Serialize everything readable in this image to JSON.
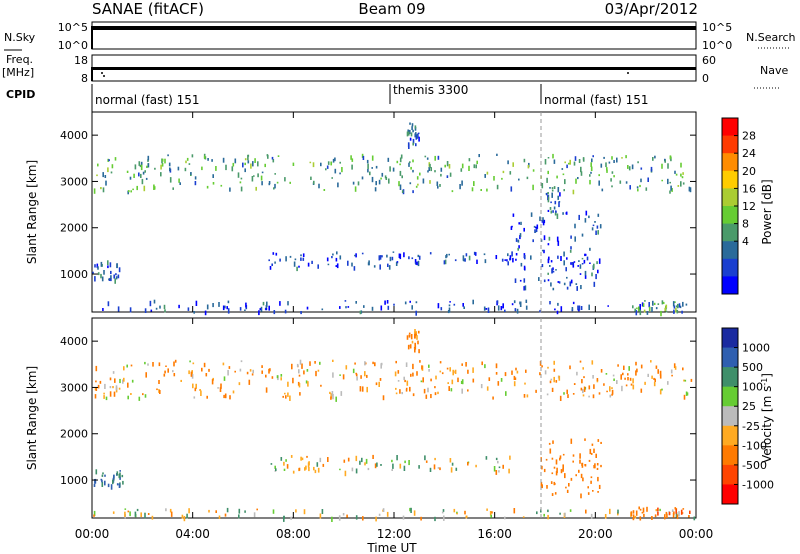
{
  "header": {
    "title_left": "SANAE (fitACF)",
    "title_center": "Beam 09",
    "title_right": "03/Apr/2012"
  },
  "top_panels": {
    "nsky_label": "N.Sky",
    "nsky_ticks": [
      "10^5",
      "10^0"
    ],
    "nsearch_label": "N.Search",
    "nsearch_ticks": [
      "10^5",
      "10^0"
    ],
    "freq_label_1": "Freq.",
    "freq_label_2": "[MHz]",
    "freq_ticks": [
      "18",
      "8"
    ],
    "nave_label": "Nave",
    "nave_ticks": [
      "60",
      "0"
    ],
    "cpid_label": "CPID",
    "cpid_segments": [
      {
        "label": "normal (fast) 151",
        "start_hour": 0,
        "end_hour": 12
      },
      {
        "label": "themis 3300",
        "start_hour": 12,
        "end_hour": 18
      },
      {
        "label": "normal (fast) 151",
        "start_hour": 18,
        "end_hour": 24
      }
    ]
  },
  "x_axis": {
    "label": "Time UT",
    "ticks": [
      "00:00",
      "04:00",
      "08:00",
      "12:00",
      "16:00",
      "20:00",
      "00:00"
    ]
  },
  "power_colorbar": {
    "label": "Power [dB]",
    "ticks": [
      "28",
      "24",
      "20",
      "16",
      "12",
      "8",
      "4"
    ],
    "colors": [
      "#ff0000",
      "#ff3a00",
      "#ff8c00",
      "#ffcc00",
      "#aacc33",
      "#66cc33",
      "#4a9a6a",
      "#2a6a9a",
      "#1a3fd0",
      "#0000ff"
    ]
  },
  "velocity_colorbar": {
    "label": "Velocity [m s^-1]",
    "ticks": [
      "1000",
      "500",
      "100",
      "25",
      "-25",
      "-100",
      "-500",
      "-1000"
    ],
    "colors": [
      "#1a2aa0",
      "#2f5fb0",
      "#3f8f6a",
      "#66cc33",
      "#bbbbbb",
      "#ffaa22",
      "#ff7a00",
      "#ff4400",
      "#ff0000"
    ]
  },
  "chart_data": [
    {
      "type": "heatmap",
      "panel": "power",
      "ylabel": "Slant Range [km]",
      "xlabel": "Time UT",
      "xlim": [
        0,
        24
      ],
      "ylim": [
        180,
        4500
      ],
      "yticks": [
        1000,
        2000,
        3000,
        4000
      ],
      "colorbar_label": "Power [dB]",
      "echo_regions": [
        {
          "t": [
            0,
            24
          ],
          "range": [
            200,
            450
          ],
          "value_db": 6
        },
        {
          "t": [
            0,
            1.2
          ],
          "range": [
            900,
            1300
          ],
          "value_db": 8
        },
        {
          "t": [
            7,
            12
          ],
          "range": [
            1150,
            1500
          ],
          "value_db": 6
        },
        {
          "t": [
            12,
            16.8
          ],
          "range": [
            1250,
            1500
          ],
          "value_db": 6
        },
        {
          "t": [
            12.5,
            13.0
          ],
          "range": [
            3800,
            4300
          ],
          "value_db": 8
        },
        {
          "t": [
            16.5,
            20.2
          ],
          "range": [
            700,
            2400
          ],
          "value_db": 6
        },
        {
          "t": [
            18,
            18.6
          ],
          "range": [
            2300,
            2900
          ],
          "value_db": 8
        },
        {
          "t": [
            21.4,
            23.3
          ],
          "range": [
            200,
            450
          ],
          "value_db": 14
        },
        {
          "t": [
            0,
            24
          ],
          "range": [
            2800,
            3600
          ],
          "value_db": 12
        }
      ]
    },
    {
      "type": "heatmap",
      "panel": "velocity",
      "ylabel": "Slant Range [km]",
      "xlabel": "Time UT",
      "xlim": [
        0,
        24
      ],
      "ylim": [
        180,
        4500
      ],
      "yticks": [
        1000,
        2000,
        3000,
        4000
      ],
      "colorbar_label": "Velocity [m s^-1]",
      "echo_regions": [
        {
          "t": [
            0,
            24
          ],
          "range": [
            200,
            400
          ],
          "value_ms": 0
        },
        {
          "t": [
            0,
            1.2
          ],
          "range": [
            900,
            1300
          ],
          "value_ms": 300
        },
        {
          "t": [
            7,
            16.8
          ],
          "range": [
            1200,
            1550
          ],
          "value_ms": 0
        },
        {
          "t": [
            12.5,
            13.0
          ],
          "range": [
            3800,
            4300
          ],
          "value_ms": -200
        },
        {
          "t": [
            17.8,
            20.2
          ],
          "range": [
            700,
            1900
          ],
          "value_ms": -300
        },
        {
          "t": [
            21.4,
            23.8
          ],
          "range": [
            200,
            450
          ],
          "value_ms": -400
        },
        {
          "t": [
            0,
            24
          ],
          "range": [
            2800,
            3600
          ],
          "value_ms": -100
        }
      ]
    }
  ]
}
